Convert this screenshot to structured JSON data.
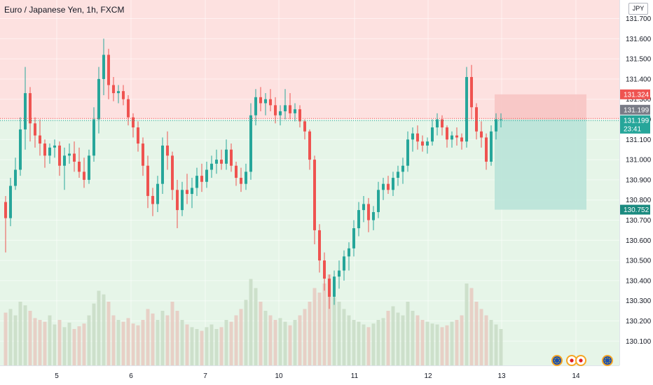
{
  "header": {
    "symbol_title": "Euro / Japanese Yen, 1h, FXCM",
    "currency_badge": "JPY"
  },
  "colors": {
    "up": "#26a69a",
    "down": "#ef5350",
    "stop_zone": "#f7c5c4",
    "target_zone": "#b9e3d8",
    "upper_bg": "#fde1e0",
    "lower_bg": "#e6f5e8",
    "volume_up": "#c8dcc5",
    "volume_down": "#e6c9c0",
    "current_price_tag": "#787b86",
    "countdown_tag": "#26a69a"
  },
  "chart_data": {
    "type": "candlestick",
    "instrument": "Euro / Japanese Yen",
    "interval": "1h",
    "broker": "FXCM",
    "x_ticks": [
      "5",
      "6",
      "7",
      "10",
      "11",
      "12",
      "13",
      "14"
    ],
    "y_ticks": [
      "130.100",
      "130.200",
      "130.300",
      "130.400",
      "130.500",
      "130.600",
      "130.700",
      "130.800",
      "130.900",
      "131.000",
      "131.100",
      "131.200",
      "131.300",
      "131.400",
      "131.500",
      "131.600",
      "131.700"
    ],
    "ylim": [
      130.03,
      131.74
    ],
    "price_tags": {
      "stop": "131.324",
      "last": "131.199",
      "entry": "131.199",
      "countdown": "23:41",
      "target": "130.752"
    },
    "short_position": {
      "entry": 131.199,
      "stop": 131.324,
      "target": 130.752
    },
    "grid": true,
    "event_markers": [
      "eu-flag-icon",
      "jp-flag-icon",
      "jp-flag-icon",
      "eu-flag-icon"
    ],
    "candles": [
      [
        130.79,
        130.82,
        130.54,
        130.71
      ],
      [
        130.71,
        130.91,
        130.67,
        130.87
      ],
      [
        130.87,
        131.01,
        130.85,
        130.95
      ],
      [
        130.95,
        131.21,
        130.92,
        131.15
      ],
      [
        131.15,
        131.46,
        131.05,
        131.33
      ],
      [
        131.33,
        131.36,
        131.09,
        131.18
      ],
      [
        131.18,
        131.21,
        131.06,
        131.12
      ],
      [
        131.12,
        131.2,
        131.02,
        131.08
      ],
      [
        131.08,
        131.1,
        130.96,
        131.02
      ],
      [
        131.02,
        131.08,
        130.98,
        131.06
      ],
      [
        131.06,
        131.1,
        131.01,
        131.07
      ],
      [
        131.07,
        131.09,
        130.92,
        130.97
      ],
      [
        130.97,
        131.06,
        130.85,
        131.02
      ],
      [
        131.02,
        131.08,
        130.98,
        131.03
      ],
      [
        131.03,
        131.09,
        130.94,
        130.99
      ],
      [
        130.99,
        131.06,
        130.91,
        130.94
      ],
      [
        130.94,
        131.01,
        130.86,
        130.9
      ],
      [
        130.9,
        131.05,
        130.88,
        131.02
      ],
      [
        131.02,
        131.26,
        130.99,
        131.2
      ],
      [
        131.2,
        131.46,
        131.13,
        131.4
      ],
      [
        131.4,
        131.6,
        131.32,
        131.52
      ],
      [
        131.52,
        131.55,
        131.3,
        131.37
      ],
      [
        131.37,
        131.41,
        131.29,
        131.33
      ],
      [
        131.33,
        131.37,
        131.28,
        131.34
      ],
      [
        131.34,
        131.37,
        131.27,
        131.3
      ],
      [
        131.3,
        131.32,
        131.17,
        131.21
      ],
      [
        131.21,
        131.23,
        131.11,
        131.16
      ],
      [
        131.16,
        131.19,
        131.04,
        131.08
      ],
      [
        131.08,
        131.11,
        130.92,
        130.97
      ],
      [
        130.97,
        131.02,
        130.76,
        130.82
      ],
      [
        130.82,
        130.86,
        130.72,
        130.78
      ],
      [
        130.78,
        130.92,
        130.74,
        130.88
      ],
      [
        130.88,
        131.11,
        130.83,
        131.07
      ],
      [
        131.07,
        131.14,
        130.95,
        131.02
      ],
      [
        131.02,
        131.04,
        130.8,
        130.85
      ],
      [
        130.85,
        130.9,
        130.66,
        130.75
      ],
      [
        130.75,
        130.89,
        130.72,
        130.85
      ],
      [
        130.85,
        130.93,
        130.78,
        130.83
      ],
      [
        130.83,
        130.91,
        130.76,
        130.86
      ],
      [
        130.86,
        130.96,
        130.82,
        130.92
      ],
      [
        130.92,
        130.98,
        130.84,
        130.89
      ],
      [
        130.89,
        130.99,
        130.86,
        130.95
      ],
      [
        130.95,
        131.02,
        130.91,
        130.98
      ],
      [
        130.98,
        131.05,
        130.93,
        131.0
      ],
      [
        131.0,
        131.05,
        130.95,
        130.98
      ],
      [
        130.98,
        131.1,
        130.95,
        131.05
      ],
      [
        131.05,
        131.08,
        130.94,
        130.97
      ],
      [
        130.97,
        130.99,
        130.87,
        130.91
      ],
      [
        130.91,
        130.96,
        130.84,
        130.88
      ],
      [
        130.88,
        130.98,
        130.85,
        130.94
      ],
      [
        130.94,
        131.28,
        130.9,
        131.22
      ],
      [
        131.22,
        131.35,
        131.17,
        131.31
      ],
      [
        131.31,
        131.36,
        131.24,
        131.28
      ],
      [
        131.28,
        131.33,
        131.22,
        131.3
      ],
      [
        131.3,
        131.35,
        131.24,
        131.27
      ],
      [
        131.27,
        131.31,
        131.18,
        131.22
      ],
      [
        131.22,
        131.27,
        131.17,
        131.24
      ],
      [
        131.24,
        131.35,
        131.2,
        131.27
      ],
      [
        131.27,
        131.33,
        131.2,
        131.23
      ],
      [
        131.23,
        131.28,
        131.19,
        131.25
      ],
      [
        131.25,
        131.27,
        131.16,
        131.19
      ],
      [
        131.19,
        131.2,
        131.1,
        131.14
      ],
      [
        131.14,
        131.15,
        130.95,
        131.0
      ],
      [
        131.0,
        131.02,
        130.58,
        130.65
      ],
      [
        130.65,
        130.68,
        130.44,
        130.5
      ],
      [
        130.5,
        130.54,
        130.35,
        130.41
      ],
      [
        130.41,
        130.43,
        130.26,
        130.32
      ],
      [
        130.32,
        130.45,
        130.28,
        130.42
      ],
      [
        130.42,
        130.5,
        130.36,
        130.45
      ],
      [
        130.45,
        130.55,
        130.4,
        130.52
      ],
      [
        130.52,
        130.59,
        130.45,
        130.56
      ],
      [
        130.56,
        130.7,
        130.52,
        130.66
      ],
      [
        130.66,
        130.79,
        130.62,
        130.75
      ],
      [
        130.75,
        130.82,
        130.69,
        130.78
      ],
      [
        130.78,
        130.81,
        130.64,
        130.7
      ],
      [
        130.7,
        130.77,
        130.65,
        130.74
      ],
      [
        130.74,
        130.89,
        130.71,
        130.85
      ],
      [
        130.85,
        130.91,
        130.8,
        130.88
      ],
      [
        130.88,
        130.92,
        130.83,
        130.85
      ],
      [
        130.85,
        130.94,
        130.82,
        130.91
      ],
      [
        130.91,
        130.97,
        130.87,
        130.94
      ],
      [
        130.94,
        131.01,
        130.88,
        130.97
      ],
      [
        130.97,
        131.14,
        130.94,
        131.1
      ],
      [
        131.1,
        131.16,
        131.04,
        131.13
      ],
      [
        131.13,
        131.17,
        131.05,
        131.09
      ],
      [
        131.09,
        131.12,
        131.04,
        131.07
      ],
      [
        131.07,
        131.11,
        131.03,
        131.09
      ],
      [
        131.09,
        131.2,
        131.07,
        131.16
      ],
      [
        131.16,
        131.23,
        131.12,
        131.2
      ],
      [
        131.2,
        131.22,
        131.12,
        131.16
      ],
      [
        131.16,
        131.17,
        131.06,
        131.1
      ],
      [
        131.1,
        131.14,
        131.06,
        131.12
      ],
      [
        131.12,
        131.16,
        131.07,
        131.11
      ],
      [
        131.11,
        131.13,
        131.05,
        131.09
      ],
      [
        131.09,
        131.46,
        131.06,
        131.41
      ],
      [
        131.41,
        131.47,
        131.2,
        131.26
      ],
      [
        131.26,
        131.28,
        131.1,
        131.14
      ],
      [
        131.14,
        131.19,
        131.06,
        131.11
      ],
      [
        131.11,
        131.13,
        130.95,
        130.99
      ],
      [
        130.99,
        131.17,
        130.97,
        131.14
      ],
      [
        131.14,
        131.23,
        131.1,
        131.2
      ],
      [
        131.2,
        131.23,
        131.16,
        131.2
      ]
    ],
    "volumes": [
      0.58,
      0.62,
      0.55,
      0.7,
      0.66,
      0.6,
      0.52,
      0.5,
      0.48,
      0.55,
      0.45,
      0.5,
      0.42,
      0.47,
      0.4,
      0.43,
      0.46,
      0.55,
      0.68,
      0.82,
      0.78,
      0.7,
      0.55,
      0.5,
      0.48,
      0.52,
      0.46,
      0.44,
      0.5,
      0.62,
      0.57,
      0.5,
      0.6,
      0.55,
      0.7,
      0.6,
      0.5,
      0.45,
      0.42,
      0.4,
      0.38,
      0.42,
      0.45,
      0.4,
      0.42,
      0.5,
      0.48,
      0.55,
      0.62,
      0.72,
      0.95,
      0.85,
      0.7,
      0.6,
      0.55,
      0.5,
      0.52,
      0.48,
      0.44,
      0.5,
      0.55,
      0.62,
      0.7,
      0.85,
      0.8,
      0.9,
      1.0,
      0.75,
      0.7,
      0.62,
      0.55,
      0.5,
      0.48,
      0.45,
      0.42,
      0.46,
      0.5,
      0.52,
      0.6,
      0.65,
      0.58,
      0.55,
      0.7,
      0.6,
      0.55,
      0.5,
      0.48,
      0.46,
      0.45,
      0.42,
      0.44,
      0.48,
      0.5,
      0.55,
      0.9,
      0.85,
      0.7,
      0.62,
      0.55,
      0.5,
      0.45,
      0.4
    ]
  }
}
